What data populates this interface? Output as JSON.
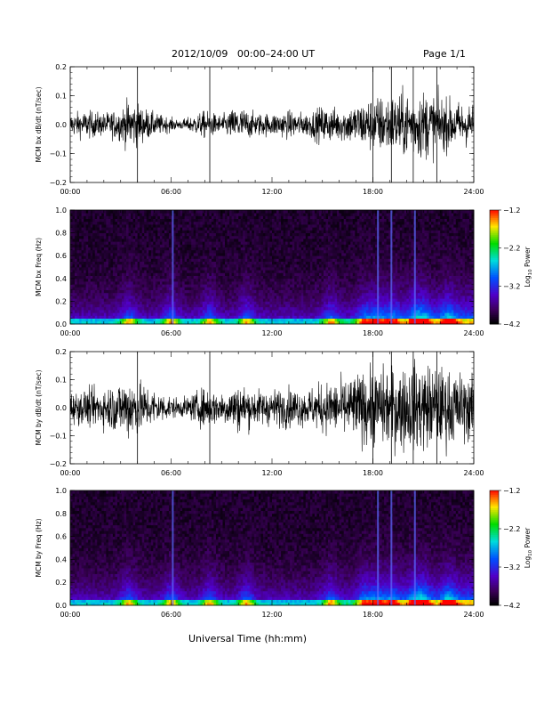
{
  "header": {
    "title": "2012/10/09   00:00–24:00 UT",
    "page": "Page 1/1"
  },
  "xlabel": "Universal Time (hh:mm)",
  "chart_data": [
    {
      "type": "line",
      "ylabel": "MCM bx dB/dt (nT/sec)",
      "x_ticks": [
        "00:00",
        "06:00",
        "12:00",
        "18:00",
        "24:00"
      ],
      "xlim": [
        0,
        24
      ],
      "xunit": "hours UT",
      "ylim": [
        -0.2,
        0.2
      ],
      "y_ticks": [
        -0.2,
        -0.1,
        0.0,
        0.1,
        0.2
      ],
      "y_tick_labels": [
        "−0.2",
        "−0.1",
        "0.0",
        "0.1",
        "0.2"
      ],
      "envelope": {
        "hours": [
          0,
          1,
          2,
          3,
          3.5,
          4,
          5,
          6,
          6.5,
          7,
          8,
          9,
          10,
          11,
          12,
          13,
          14,
          15,
          16,
          17,
          18,
          19,
          20,
          21,
          22,
          23,
          24
        ],
        "amplitude": [
          0.05,
          0.06,
          0.05,
          0.07,
          0.11,
          0.09,
          0.05,
          0.03,
          0.02,
          0.03,
          0.06,
          0.04,
          0.08,
          0.05,
          0.05,
          0.06,
          0.05,
          0.08,
          0.07,
          0.09,
          0.12,
          0.13,
          0.14,
          0.15,
          0.12,
          0.1,
          0.09
        ]
      },
      "series": [
        {
          "values_note": "",
          "color": "#000000"
        }
      ]
    },
    {
      "type": "heatmap",
      "ylabel": "MCM bx Freq (Hz)",
      "x_ticks": [
        "00:00",
        "06:00",
        "12:00",
        "18:00",
        "24:00"
      ],
      "xlim": [
        0,
        24
      ],
      "ylim": [
        0,
        1.0
      ],
      "y_ticks": [
        0.0,
        0.2,
        0.4,
        0.6,
        0.8,
        1.0
      ],
      "y_tick_labels": [
        "0.0",
        "0.2",
        "0.4",
        "0.6",
        "0.8",
        "1.0"
      ],
      "colorbar": {
        "label": "Log10 Power",
        "label_main": "Log",
        "label_sub": "10",
        "label_tail": " Power",
        "ticks": [
          -4.2,
          -3.2,
          -2.2,
          -1.2
        ],
        "tick_labels": [
          "−4.2",
          "−3.2",
          "−2.2",
          "−1.2"
        ],
        "range": [
          -4.2,
          -1.2
        ]
      }
    },
    {
      "type": "line",
      "ylabel": "MCM by dB/dt (nT/sec)",
      "x_ticks": [
        "00:00",
        "06:00",
        "12:00",
        "18:00",
        "24:00"
      ],
      "xlim": [
        0,
        24
      ],
      "xunit": "hours UT",
      "ylim": [
        -0.2,
        0.2
      ],
      "y_ticks": [
        -0.2,
        -0.1,
        0.0,
        0.1,
        0.2
      ],
      "y_tick_labels": [
        "−0.2",
        "−0.1",
        "0.0",
        "0.1",
        "0.2"
      ],
      "envelope": {
        "hours": [
          0,
          1,
          2,
          3,
          3.5,
          4,
          5,
          6,
          6.5,
          7,
          8,
          9,
          10,
          11,
          12,
          13,
          14,
          15,
          16,
          17,
          18,
          19,
          20,
          21,
          22,
          23,
          24
        ],
        "amplitude": [
          0.07,
          0.08,
          0.09,
          0.12,
          0.15,
          0.12,
          0.08,
          0.05,
          0.04,
          0.05,
          0.09,
          0.07,
          0.11,
          0.08,
          0.08,
          0.09,
          0.08,
          0.11,
          0.12,
          0.15,
          0.17,
          0.18,
          0.19,
          0.2,
          0.18,
          0.16,
          0.14
        ]
      },
      "series": [
        {
          "values_note": "",
          "color": "#000000"
        }
      ]
    },
    {
      "type": "heatmap",
      "ylabel": "MCM by Freq (Hz)",
      "x_ticks": [
        "00:00",
        "06:00",
        "12:00",
        "18:00",
        "24:00"
      ],
      "xlim": [
        0,
        24
      ],
      "ylim": [
        0,
        1.0
      ],
      "y_ticks": [
        0.0,
        0.2,
        0.4,
        0.6,
        0.8,
        1.0
      ],
      "y_tick_labels": [
        "0.0",
        "0.2",
        "0.4",
        "0.6",
        "0.8",
        "1.0"
      ],
      "colorbar": {
        "label": "Log10 Power",
        "label_main": "Log",
        "label_sub": "10",
        "label_tail": " Power",
        "ticks": [
          -4.2,
          -3.2,
          -2.2,
          -1.2
        ],
        "tick_labels": [
          "−4.2",
          "−3.2",
          "−2.2",
          "−1.2"
        ],
        "range": [
          -4.2,
          -1.2
        ]
      }
    }
  ],
  "activity_hours": [
    3.5,
    6.0,
    8.3,
    10.5,
    15.5,
    17.5,
    18.3,
    19.2,
    20.5,
    21.0,
    22.5
  ],
  "spikes_hours": [
    4.0,
    8.3,
    18.0,
    19.1,
    20.4,
    21.8
  ]
}
